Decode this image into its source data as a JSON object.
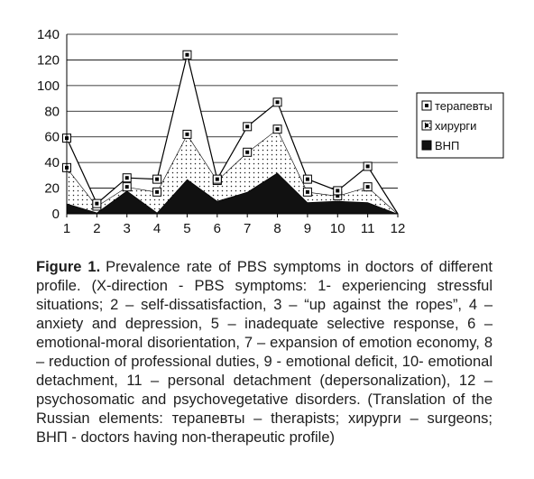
{
  "chart_data": {
    "type": "area",
    "stacked": true,
    "categories": [
      "1",
      "2",
      "3",
      "4",
      "5",
      "6",
      "7",
      "8",
      "9",
      "10",
      "11",
      "12"
    ],
    "ylim": [
      0,
      140
    ],
    "yticks": [
      "0",
      "20",
      "40",
      "60",
      "80",
      "100",
      "120",
      "140"
    ],
    "grid": true,
    "legend_position": "right",
    "series": [
      {
        "name": "ВНП",
        "values": [
          8,
          1,
          18,
          1,
          27,
          10,
          17,
          32,
          9,
          10,
          9,
          0
        ],
        "color": "#111111",
        "pattern": "solid"
      },
      {
        "name": "хирурги",
        "values": [
          28,
          5,
          3,
          16,
          35,
          16,
          31,
          34,
          8,
          4,
          12,
          0
        ],
        "color": "#ffffff",
        "pattern": "dots"
      },
      {
        "name": "терапевты",
        "values": [
          23,
          2,
          7,
          10,
          62,
          1,
          20,
          21,
          10,
          4,
          16,
          0
        ],
        "color": "#ffffff",
        "pattern": "none"
      }
    ]
  },
  "caption": {
    "label": "Figure 1.",
    "text": "Prevalence rate of PBS symptoms in doctors of different profile. (X-direction - PBS symptoms: 1- experiencing stressful situations; 2 – self-dissatisfaction, 3 – “up against the ropes”, 4 – anxiety and depression, 5 – inadequate selective response, 6 – emotional-moral disorientation, 7 – expansion of emotion economy, 8 – reduction of professional duties, 9 - emotional deficit, 10- emotional detachment, 11 – personal detachment (depersonalization), 12 – psychosomatic and psychovegetative disorders. (Translation of the Russian elements: терапевты – therapists; хирурги – surgeons; ВНП - doctors having non-therapeutic profile)"
  }
}
